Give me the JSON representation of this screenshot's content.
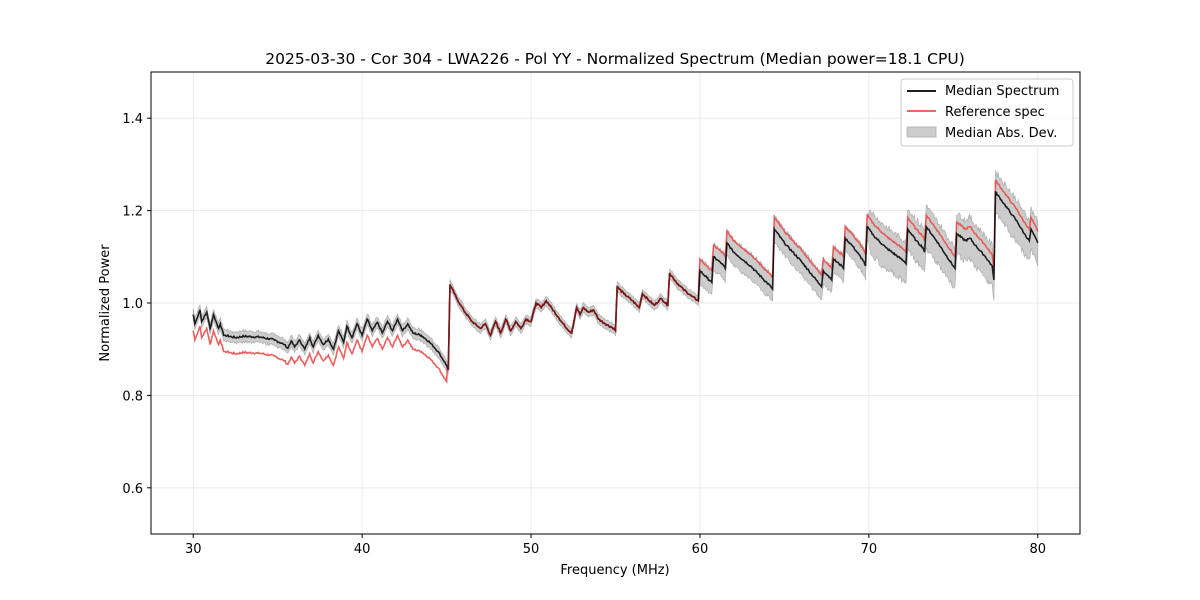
{
  "chart_data": {
    "type": "line",
    "title": "2025-03-30 - Cor 304 - LWA226 - Pol YY - Normalized Spectrum (Median power=18.1 CPU)",
    "xlabel": "Frequency (MHz)",
    "ylabel": "Normalized Power",
    "xlim": [
      27.5,
      82.5
    ],
    "ylim": [
      0.5,
      1.5
    ],
    "xticks": [
      30,
      40,
      50,
      60,
      70,
      80
    ],
    "xtick_labels": [
      "30",
      "40",
      "50",
      "60",
      "70",
      "80"
    ],
    "yticks": [
      0.6,
      0.8,
      1.0,
      1.2,
      1.4
    ],
    "ytick_labels": [
      "0.6",
      "0.8",
      "1.0",
      "1.2",
      "1.4"
    ],
    "grid": true,
    "legend_position": "top-right",
    "legend": [
      {
        "label": "Median Spectrum",
        "kind": "line",
        "color": "#000000"
      },
      {
        "label": "Reference spec",
        "kind": "line",
        "color": "#e8504f"
      },
      {
        "label": "Median Abs. Dev.",
        "kind": "band",
        "color": "#bfbfbf"
      }
    ],
    "series": [
      {
        "name": "Median Spectrum",
        "color": "#000000",
        "x": [
          30.0,
          30.1,
          30.4,
          30.5,
          30.8,
          31.0,
          31.2,
          31.5,
          31.6,
          31.8,
          31.9,
          32.5,
          33.0,
          34.0,
          34.8,
          35.4,
          35.6,
          35.8,
          36.0,
          36.3,
          36.6,
          36.9,
          37.1,
          37.4,
          37.7,
          38.0,
          38.3,
          38.6,
          38.9,
          39.1,
          39.4,
          39.7,
          40.0,
          40.3,
          40.6,
          40.9,
          41.2,
          41.5,
          41.8,
          42.1,
          42.4,
          42.7,
          43.0,
          43.5,
          44.0,
          44.5,
          45.0,
          45.1,
          45.2,
          45.6,
          46.0,
          46.5,
          47.0,
          47.3,
          47.6,
          47.9,
          48.2,
          48.5,
          48.8,
          49.1,
          49.4,
          49.7,
          50.0,
          50.3,
          50.6,
          50.9,
          51.2,
          51.6,
          52.0,
          52.4,
          52.7,
          52.9,
          53.1,
          53.4,
          53.7,
          54.0,
          54.4,
          54.9,
          55.0,
          55.1,
          55.5,
          56.0,
          56.4,
          56.6,
          57.0,
          57.3,
          57.7,
          58.1,
          58.2,
          58.6,
          59.0,
          59.5,
          59.9,
          60.0,
          60.4,
          60.7,
          60.8,
          61.3,
          61.5,
          61.6,
          62.0,
          63.0,
          64.2,
          64.3,
          64.4,
          65.0,
          66.0,
          67.1,
          67.2,
          67.3,
          67.7,
          67.8,
          67.9,
          68.4,
          68.5,
          68.6,
          69.0,
          69.7,
          69.8,
          69.9,
          70.3,
          71.0,
          72.1,
          72.2,
          72.3,
          72.8,
          73.2,
          73.3,
          73.4,
          74.0,
          75.0,
          75.1,
          75.2,
          75.7,
          76.0,
          76.3,
          76.9,
          77.3,
          77.4,
          77.5,
          78.0,
          78.5,
          78.8,
          79.2,
          79.5,
          79.6,
          80.0
        ],
        "y": [
          0.975,
          0.955,
          0.985,
          0.96,
          0.98,
          0.945,
          0.975,
          0.945,
          0.955,
          0.93,
          0.93,
          0.925,
          0.928,
          0.926,
          0.92,
          0.91,
          0.902,
          0.918,
          0.905,
          0.92,
          0.9,
          0.925,
          0.905,
          0.93,
          0.91,
          0.922,
          0.9,
          0.94,
          0.915,
          0.95,
          0.925,
          0.955,
          0.93,
          0.965,
          0.94,
          0.958,
          0.935,
          0.96,
          0.94,
          0.965,
          0.94,
          0.955,
          0.935,
          0.93,
          0.915,
          0.895,
          0.865,
          0.855,
          1.04,
          1.01,
          0.985,
          0.96,
          0.945,
          0.955,
          0.93,
          0.96,
          0.935,
          0.965,
          0.94,
          0.96,
          0.945,
          0.965,
          0.96,
          1.0,
          0.99,
          1.005,
          0.99,
          0.97,
          0.95,
          0.935,
          0.99,
          0.975,
          0.99,
          0.98,
          0.985,
          0.965,
          0.955,
          0.945,
          0.94,
          1.035,
          1.02,
          1.005,
          0.99,
          1.02,
          1.005,
          0.995,
          1.01,
          0.995,
          1.065,
          1.045,
          1.03,
          1.015,
          1.005,
          1.07,
          1.055,
          1.045,
          1.1,
          1.085,
          1.075,
          1.13,
          1.11,
          1.08,
          1.035,
          1.03,
          1.16,
          1.13,
          1.09,
          1.04,
          1.035,
          1.07,
          1.055,
          1.05,
          1.095,
          1.08,
          1.075,
          1.14,
          1.125,
          1.09,
          1.08,
          1.165,
          1.145,
          1.12,
          1.09,
          1.085,
          1.16,
          1.135,
          1.12,
          1.11,
          1.165,
          1.135,
          1.08,
          1.075,
          1.15,
          1.135,
          1.14,
          1.125,
          1.1,
          1.08,
          1.05,
          1.24,
          1.215,
          1.19,
          1.175,
          1.15,
          1.135,
          1.16,
          1.13
        ]
      },
      {
        "name": "Reference spec",
        "color": "#e8504f",
        "offset_from_median": [
          {
            "x_max": 45.0,
            "delta": -0.035
          },
          {
            "x_max": 59.9,
            "delta": 0.0
          },
          {
            "x_max": 80.0,
            "delta": 0.025
          }
        ]
      },
      {
        "name": "Median Abs. Dev.",
        "color": "#bfbfbf",
        "band_halfwidth": [
          {
            "x_max": 45.0,
            "value": 0.012
          },
          {
            "x_max": 59.9,
            "value": 0.01
          },
          {
            "x_max": 70.0,
            "value": 0.028
          },
          {
            "x_max": 80.0,
            "value": 0.045
          }
        ]
      }
    ]
  }
}
